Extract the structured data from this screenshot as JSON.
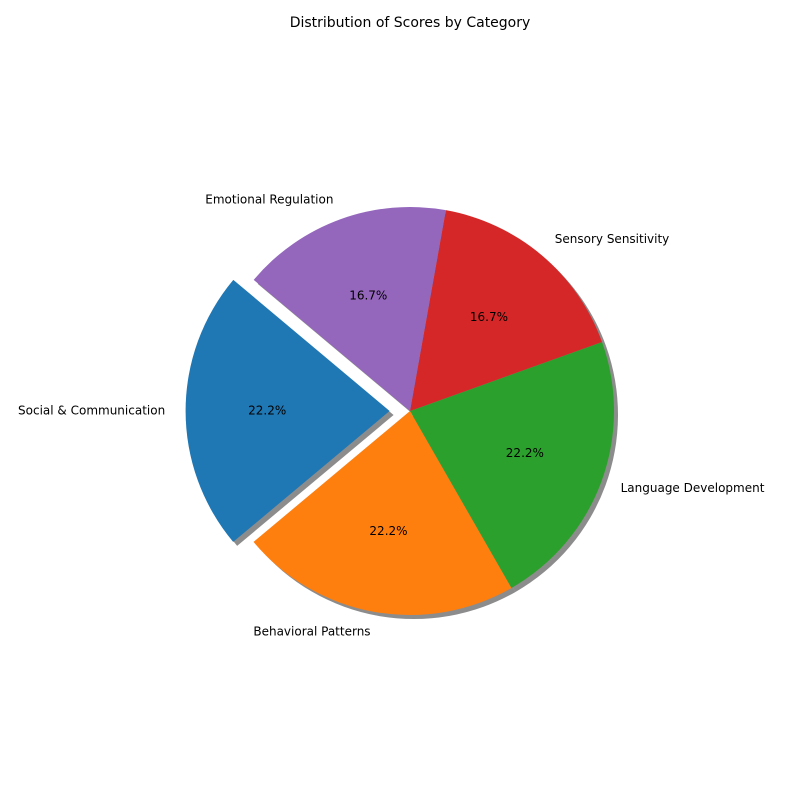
{
  "chart_data": {
    "type": "pie",
    "title": "Distribution of Scores by Category",
    "slices": [
      {
        "label": "Social & Communication",
        "value": 22.2,
        "pct_label": "22.2%",
        "color": "#1f77b4",
        "exploded": true
      },
      {
        "label": "Behavioral Patterns",
        "value": 22.2,
        "pct_label": "22.2%",
        "color": "#ff7f0e",
        "exploded": false
      },
      {
        "label": "Language Development",
        "value": 22.2,
        "pct_label": "22.2%",
        "color": "#2ca02c",
        "exploded": false
      },
      {
        "label": "Sensory Sensitivity",
        "value": 16.7,
        "pct_label": "16.7%",
        "color": "#d62728",
        "exploded": false
      },
      {
        "label": "Emotional Regulation",
        "value": 16.7,
        "pct_label": "16.7%",
        "color": "#9467bd",
        "exploded": false
      }
    ],
    "start_angle_deg": 140,
    "direction": "counterclockwise",
    "shadow": true,
    "legend": "none"
  }
}
